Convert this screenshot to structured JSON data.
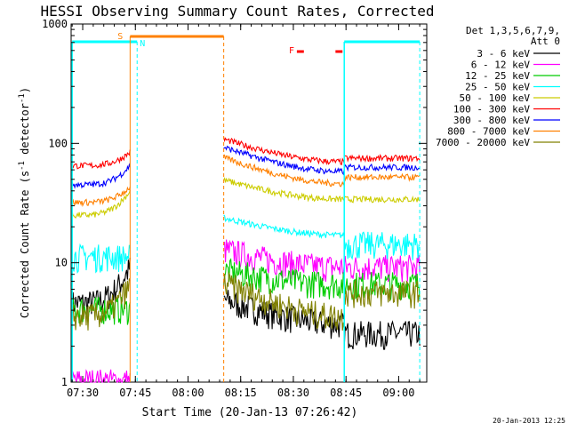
{
  "chart_data": {
    "type": "line",
    "title": "HESSI Observing Summary Count Rates, Corrected",
    "xlabel": "Start Time (20-Jan-13 07:26:42)",
    "ylabel": "Corrected Count Rate (s⁻¹ detector⁻¹)",
    "ylabel_main": "Corrected Count Rate (s",
    "ylabel_sup1": "-1",
    "ylabel_mid": " detector",
    "ylabel_sup2": "-1",
    "ylabel_end": ")",
    "yscale": "log",
    "ylim": [
      1,
      1000
    ],
    "xlim": [
      "07:26:42",
      "09:08:00"
    ],
    "x_ticks": [
      "07:30",
      "07:45",
      "08:00",
      "08:15",
      "08:30",
      "08:45",
      "09:00"
    ],
    "y_ticks": [
      "1",
      "10",
      "100",
      "1000"
    ],
    "legend_header": [
      "Det 1,3,5,6,7,9,",
      "Att 0"
    ],
    "legend_position": "right",
    "footer_date": "20-Jan-2013 12:25",
    "segment_times": {
      "seg1": [
        "07:27:00",
        "07:43:30"
      ],
      "seg2": [
        "08:10:10",
        "08:44:30"
      ],
      "seg3": [
        "08:44:30",
        "09:06:00"
      ]
    },
    "series": [
      {
        "name": "3 - 6 keV",
        "color": "#000000",
        "level": [
          4.5,
          3.0,
          2.5
        ],
        "curve": [
          2.0,
          1.6,
          1.5
        ]
      },
      {
        "name": "6 - 12 keV",
        "color": "#ff00ff",
        "level": [
          1.0,
          9.0,
          9.0
        ],
        "curve": [
          1.0,
          1.4,
          1.2
        ]
      },
      {
        "name": "12 - 25 keV",
        "color": "#00cc00",
        "level": [
          4.0,
          6.5,
          6.5
        ],
        "curve": [
          1.0,
          1.3,
          1.1
        ]
      },
      {
        "name": "25 - 50 keV",
        "color": "#00ffff",
        "level": [
          11.0,
          17.0,
          14.0
        ],
        "curve": [
          1.0,
          1.4,
          1.1
        ]
      },
      {
        "name": "50 - 100 keV",
        "color": "#cccc00",
        "level": [
          25.0,
          34.0,
          34.0
        ],
        "curve": [
          1.6,
          1.45,
          1.0
        ]
      },
      {
        "name": "100 - 300 keV",
        "color": "#ff0000",
        "level": [
          65.0,
          70.0,
          75.0
        ],
        "curve": [
          1.3,
          1.55,
          1.0
        ]
      },
      {
        "name": "300 - 800 keV",
        "color": "#0000ff",
        "level": [
          45.0,
          58.0,
          63.0
        ],
        "curve": [
          1.45,
          1.6,
          1.0
        ]
      },
      {
        "name": "800 - 7000 keV",
        "color": "#ff8000",
        "level": [
          32.0,
          46.0,
          52.0
        ],
        "curve": [
          1.35,
          1.65,
          1.0
        ]
      },
      {
        "name": "7000 - 20000 keV",
        "color": "#808000",
        "level": [
          3.5,
          3.5,
          5.5
        ],
        "curve": [
          1.8,
          1.9,
          1.0
        ]
      }
    ],
    "annotations": [
      {
        "label": "S",
        "time": "07:43:30",
        "color": "#ff8000"
      },
      {
        "label": "N",
        "time": "07:45:30",
        "color": "#00ffff"
      },
      {
        "label": "F",
        "time": "08:29:00",
        "color": "#ff0000"
      }
    ],
    "night_intervals": [
      [
        "07:27:00",
        "07:45:30"
      ],
      [
        "08:44:30",
        "09:06:00"
      ]
    ],
    "saa_interval": [
      "07:43:30",
      "08:10:10"
    ],
    "flare_marks": [
      [
        "08:31:00",
        "08:33:00"
      ],
      [
        "08:42:00",
        "08:44:00"
      ]
    ]
  }
}
